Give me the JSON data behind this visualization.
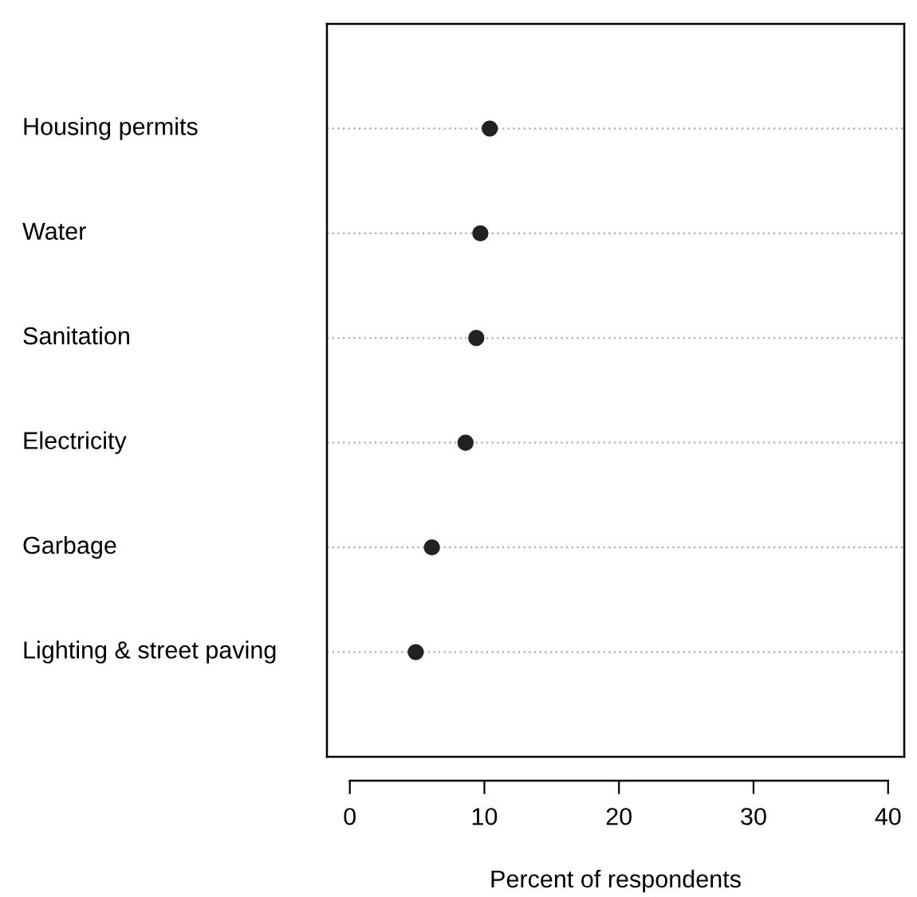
{
  "chart_data": {
    "type": "scatter",
    "orientation": "horizontal",
    "xlabel": "Percent of respondents",
    "categories": [
      "Housing permits",
      "Water",
      "Sanitation",
      "Electricity",
      "Garbage",
      "Lighting & street paving"
    ],
    "series": [
      {
        "color": "#222222",
        "values": [
          10.4,
          9.7,
          9.4,
          8.6,
          6.1,
          4.9
        ]
      }
    ],
    "xlim": [
      -1.7,
      41.2
    ],
    "xticks": [
      0,
      10,
      20,
      30,
      40
    ],
    "grid": "y",
    "marker": "circle"
  }
}
